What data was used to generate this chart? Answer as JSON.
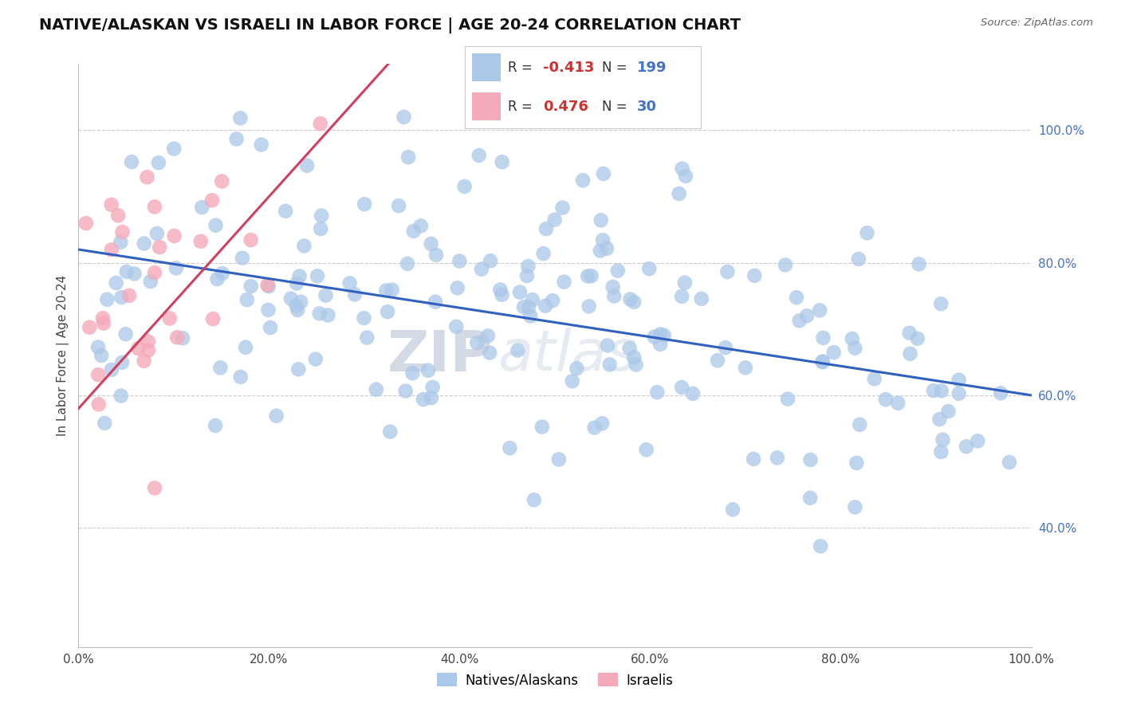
{
  "title": "NATIVE/ALASKAN VS ISRAELI IN LABOR FORCE | AGE 20-24 CORRELATION CHART",
  "source": "Source: ZipAtlas.com",
  "ylabel": "In Labor Force | Age 20-24",
  "xlim": [
    0.0,
    1.0
  ],
  "ylim": [
    0.22,
    1.1
  ],
  "xtick_vals": [
    0.0,
    0.2,
    0.4,
    0.6,
    0.8,
    1.0
  ],
  "xtick_labels": [
    "0.0%",
    "20.0%",
    "40.0%",
    "60.0%",
    "80.0%",
    "100.0%"
  ],
  "ytick_vals": [
    0.4,
    0.6,
    0.8,
    1.0
  ],
  "ytick_labels": [
    "40.0%",
    "60.0%",
    "80.0%",
    "100.0%"
  ],
  "legend_R_blue": "-0.413",
  "legend_N_blue": "199",
  "legend_R_pink": "0.476",
  "legend_N_pink": "30",
  "blue_dot_color": "#aac8e8",
  "pink_dot_color": "#f5aabb",
  "blue_line_color": "#3060c0",
  "pink_line_color": "#d04060",
  "blue_intercept": 0.82,
  "blue_slope": -0.22,
  "pink_intercept": 0.58,
  "pink_slope": 1.6,
  "watermark_zip": "ZIP",
  "watermark_atlas": "atlas",
  "seed": 9999
}
